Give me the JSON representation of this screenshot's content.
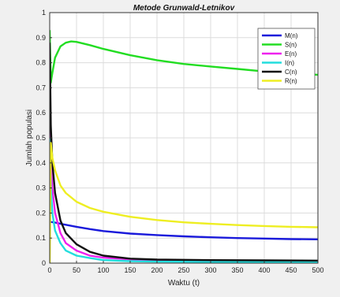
{
  "chart_data": {
    "type": "line",
    "title": "Metode Grunwald-Letnikov",
    "xlabel": "Waktu (t)",
    "ylabel": "Jumlah populasi",
    "xlim": [
      0,
      500
    ],
    "ylim": [
      0,
      1
    ],
    "xticks": [
      0,
      50,
      100,
      150,
      200,
      250,
      300,
      350,
      400,
      450,
      500
    ],
    "yticks": [
      0,
      0.1,
      0.2,
      0.3,
      0.4,
      0.5,
      0.6,
      0.7,
      0.8,
      0.9,
      1
    ],
    "grid": true,
    "legend_position": "top-right",
    "series": [
      {
        "name": "M(n)",
        "color": "#1a1adb",
        "x": [
          0,
          10,
          25,
          50,
          75,
          100,
          150,
          200,
          250,
          300,
          350,
          400,
          450,
          500
        ],
        "y": [
          0.165,
          0.162,
          0.155,
          0.145,
          0.136,
          0.128,
          0.118,
          0.112,
          0.107,
          0.103,
          0.1,
          0.098,
          0.096,
          0.095
        ]
      },
      {
        "name": "S(n)",
        "color": "#22dd22",
        "x": [
          0,
          2,
          5,
          10,
          20,
          30,
          40,
          50,
          75,
          100,
          150,
          200,
          250,
          300,
          350,
          400,
          450,
          500
        ],
        "y": [
          0.93,
          0.72,
          0.76,
          0.82,
          0.865,
          0.88,
          0.885,
          0.883,
          0.87,
          0.855,
          0.83,
          0.81,
          0.795,
          0.785,
          0.775,
          0.765,
          0.758,
          0.752
        ]
      },
      {
        "name": "E(n)",
        "color": "#ee22ee",
        "x": [
          0,
          2,
          5,
          10,
          20,
          30,
          50,
          75,
          100,
          150,
          200,
          300,
          400,
          500
        ],
        "y": [
          0.6,
          0.42,
          0.3,
          0.2,
          0.12,
          0.08,
          0.05,
          0.03,
          0.022,
          0.015,
          0.012,
          0.01,
          0.008,
          0.008
        ]
      },
      {
        "name": "I(n)",
        "color": "#22dddd",
        "x": [
          0,
          2,
          5,
          10,
          20,
          30,
          50,
          75,
          100,
          150,
          200,
          300,
          400,
          500
        ],
        "y": [
          0.5,
          0.3,
          0.2,
          0.13,
          0.08,
          0.05,
          0.03,
          0.02,
          0.012,
          0.008,
          0.006,
          0.005,
          0.004,
          0.004
        ]
      },
      {
        "name": "C(n)",
        "color": "#111111",
        "x": [
          0,
          2,
          5,
          10,
          20,
          30,
          50,
          75,
          100,
          150,
          200,
          300,
          400,
          500
        ],
        "y": [
          0.88,
          0.55,
          0.4,
          0.28,
          0.17,
          0.12,
          0.075,
          0.045,
          0.03,
          0.018,
          0.014,
          0.012,
          0.011,
          0.01
        ]
      },
      {
        "name": "R(n)",
        "color": "#eeee22",
        "x": [
          0,
          2,
          5,
          10,
          20,
          30,
          50,
          75,
          100,
          150,
          200,
          250,
          300,
          350,
          400,
          450,
          500
        ],
        "y": [
          0.0,
          0.48,
          0.42,
          0.37,
          0.31,
          0.28,
          0.245,
          0.22,
          0.205,
          0.185,
          0.172,
          0.163,
          0.157,
          0.152,
          0.148,
          0.145,
          0.143
        ]
      }
    ]
  }
}
